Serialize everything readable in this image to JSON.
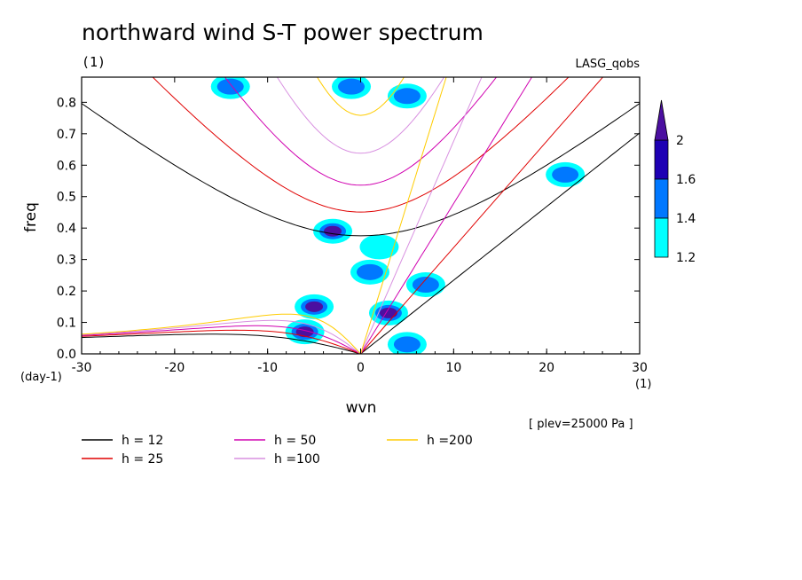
{
  "chart_data": {
    "type": "heatmap",
    "title": "northward wind S-T power spectrum",
    "subtitle": "(1)",
    "source_label": "LASG_qobs",
    "xlabel": "wvn",
    "ylabel": "freq",
    "x_unit": "(1)",
    "y_unit": "(day-1)",
    "xlim": [
      -30,
      30
    ],
    "ylim": [
      0,
      0.88
    ],
    "x_ticks": [
      -30,
      -20,
      -10,
      0,
      10,
      20,
      30
    ],
    "x_tick_labels": [
      "-30",
      "-20",
      "-10",
      "0",
      "10",
      "20",
      "30"
    ],
    "y_ticks": [
      0,
      0.1,
      0.2,
      0.3,
      0.4,
      0.5,
      0.6,
      0.7,
      0.8
    ],
    "y_tick_labels": [
      "0.0",
      "0.1",
      "0.2",
      "0.3",
      "0.4",
      "0.5",
      "0.6",
      "0.7",
      "0.8"
    ],
    "colorbar": {
      "levels": [
        1.2,
        1.4,
        1.6,
        2
      ],
      "level_labels": [
        "1.2",
        "1.4",
        "1.6",
        "2"
      ],
      "colors": [
        "#00ffff",
        "#0078ff",
        "#1e00b4",
        "#4b0fa0"
      ]
    },
    "contour_regions": [
      {
        "wvn": -3,
        "freq": 0.39,
        "level": 2
      },
      {
        "wvn": -6,
        "freq": 0.07,
        "level": 2
      },
      {
        "wvn": -5,
        "freq": 0.15,
        "level": 2
      },
      {
        "wvn": 3,
        "freq": 0.13,
        "level": 2
      },
      {
        "wvn": 5,
        "freq": 0.03,
        "level": 1.6
      },
      {
        "wvn": 7,
        "freq": 0.22,
        "level": 1.6
      },
      {
        "wvn": 1,
        "freq": 0.26,
        "level": 1.6
      },
      {
        "wvn": 5,
        "freq": 0.82,
        "level": 1.6
      },
      {
        "wvn": -1,
        "freq": 0.85,
        "level": 1.6
      },
      {
        "wvn": -14,
        "freq": 0.85,
        "level": 1.6
      },
      {
        "wvn": 2,
        "freq": 0.34,
        "level": 1.4
      },
      {
        "wvn": 22,
        "freq": 0.57,
        "level": 1.6
      }
    ],
    "dispersion_curves": {
      "equivalent_depths": [
        12,
        25,
        50,
        100,
        200
      ],
      "colors": [
        "#000000",
        "#e00000",
        "#d000b0",
        "#d890e0",
        "#ffcc00"
      ],
      "legend_labels": [
        "h = 12",
        "h = 25",
        "h = 50",
        "h =100",
        "h =200"
      ]
    },
    "annotation": "[ plev=25000 Pa ]"
  }
}
